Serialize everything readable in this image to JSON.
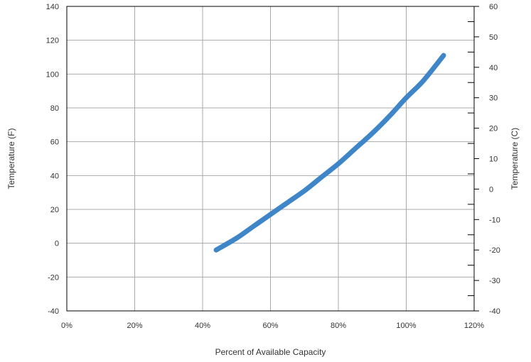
{
  "chart_data": {
    "type": "line",
    "xlabel": "Percent of Available Capacity",
    "ylabel": "Temperature (F)",
    "y2label": "Temperature (C)",
    "xlim": [
      0,
      120
    ],
    "ylim": [
      -40,
      140
    ],
    "y2lim": [
      -40,
      60
    ],
    "x_ticks": [
      "0%",
      "20%",
      "40%",
      "60%",
      "80%",
      "100%",
      "120%"
    ],
    "y_ticks": [
      "-40",
      "-20",
      "0",
      "20",
      "40",
      "60",
      "80",
      "100",
      "120",
      "140"
    ],
    "y2_ticks": [
      "-40",
      "-30",
      "-20",
      "-10",
      "0",
      "10",
      "20",
      "30",
      "40",
      "50",
      "60"
    ],
    "grid": true,
    "series": [
      {
        "color": "#3f86c8",
        "x": [
          44,
          50,
          55,
          60,
          65,
          70,
          75,
          80,
          85,
          90,
          95,
          100,
          105,
          111
        ],
        "y": [
          -4,
          3,
          10,
          17,
          24,
          31,
          39,
          47,
          56,
          65,
          75,
          86,
          96,
          111
        ]
      }
    ]
  }
}
